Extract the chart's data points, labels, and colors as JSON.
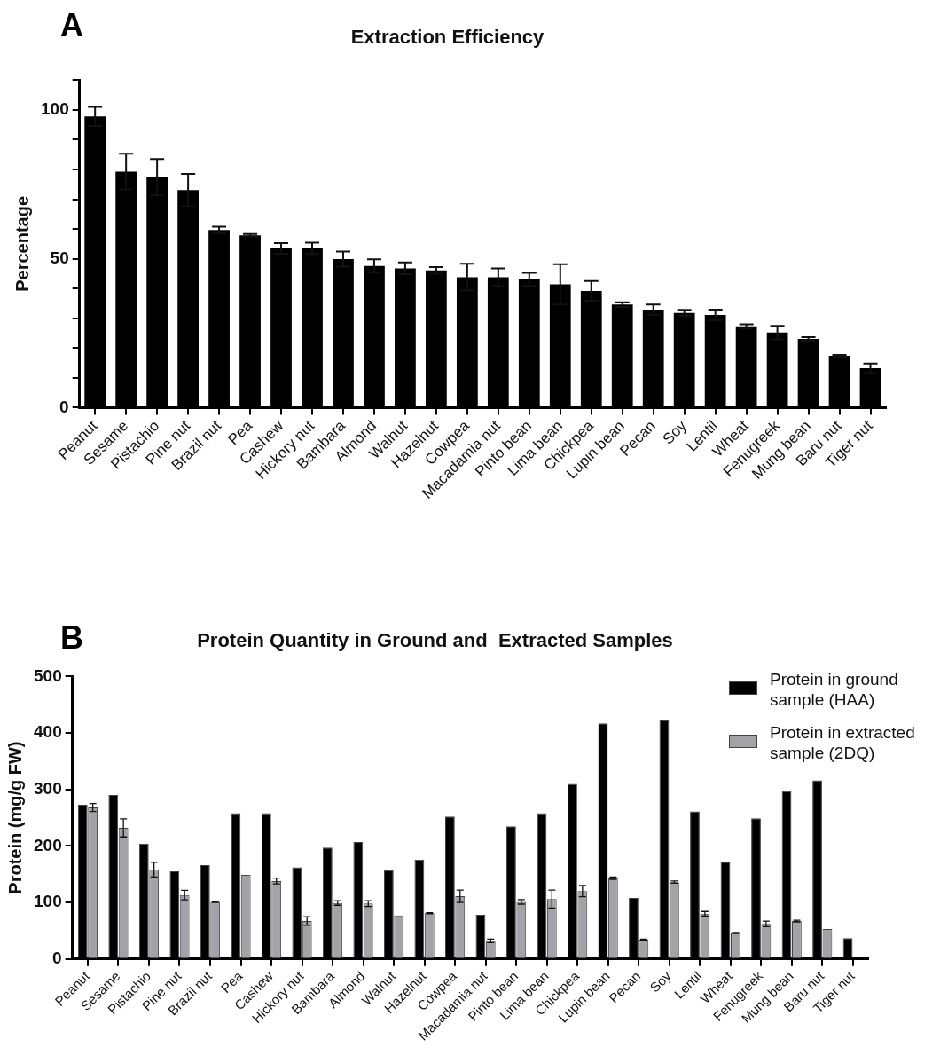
{
  "chart_data": [
    {
      "type": "bar",
      "title": "Extraction Efficiency",
      "ylabel": "Percentage",
      "annotations": [
        "A"
      ],
      "categories": [
        "Peanut",
        "Sesame",
        "Pistachio",
        "Pine nut",
        "Brazil nut",
        "Pea",
        "Cashew",
        "Hickory nut",
        "Bambara",
        "Almond",
        "Walnut",
        "Hazelnut",
        "Cowpea",
        "Macadamia nut",
        "Pinto bean",
        "Lima bean",
        "Chickpea",
        "Lupin bean",
        "Pecan",
        "Soy",
        "Lentil",
        "Wheat",
        "Fenugreek",
        "Mung bean",
        "Baru nut",
        "Tiger nut"
      ],
      "values": [
        97.8,
        79.3,
        77.4,
        73.1,
        59.7,
        57.9,
        53.5,
        53.5,
        49.9,
        47.6,
        46.8,
        46.1,
        43.8,
        43.8,
        43.1,
        41.4,
        39.2,
        34.6,
        32.9,
        31.8,
        31.1,
        27.3,
        25.2,
        23.1,
        17.4,
        13.2
      ],
      "errors": [
        3.2,
        6,
        6.1,
        5.4,
        1.1,
        0.4,
        1.8,
        1.9,
        2.5,
        2.2,
        2,
        1.1,
        4.5,
        3,
        2.2,
        6.8,
        3.3,
        0.8,
        1.7,
        1,
        1.8,
        0.7,
        2.3,
        0.6,
        0.3,
        1.6
      ],
      "color": "#000000",
      "ylim": [
        0,
        110
      ],
      "yticks": [
        0,
        {
          "value": 10,
          "label": null
        },
        {
          "value": 20,
          "label": null
        },
        {
          "value": 30,
          "label": null
        },
        {
          "value": 40,
          "label": null
        },
        50,
        {
          "value": 60,
          "label": null
        },
        {
          "value": 70,
          "label": null
        },
        {
          "value": 80,
          "label": null
        },
        {
          "value": 90,
          "label": null
        },
        100,
        {
          "value": 110,
          "label": null
        }
      ]
    },
    {
      "type": "bar",
      "title": "Protein Quantity in Ground and  Extracted Samples",
      "ylabel": "Protein (mg/g FW)",
      "annotations": [
        "B"
      ],
      "legend": "top right",
      "categories": [
        "Peanut",
        "Sesame",
        "Pistachio",
        "Pine nut",
        "Brazil nut",
        "Pea",
        "Cashew",
        "Hickory nut",
        "Bambara",
        "Almond",
        "Walnut",
        "Hazelnut",
        "Cowpea",
        "Macadamia nut",
        "Pinto bean",
        "Lima bean",
        "Chickpea",
        "Lupin bean",
        "Pecan",
        "Soy",
        "Lentil",
        "Wheat",
        "Fenugreek",
        "Mung bean",
        "Baru nut",
        "Tiger nut"
      ],
      "series": [
        {
          "name": "Protein in ground sample  (HAA)",
          "color": "#000000",
          "values": [
            273,
            290,
            204,
            155,
            166,
            258,
            258,
            162,
            197,
            207,
            157,
            176,
            252,
            78,
            235,
            258,
            310,
            417,
            108,
            422,
            261,
            172,
            249,
            297,
            316,
            37
          ]
        },
        {
          "name": "Protein in extracted sample (2DQ)",
          "color": "#a3a3a7",
          "values": [
            268,
            232,
            158,
            113,
            101,
            149,
            138,
            67,
            99,
            98,
            77,
            81,
            111,
            32,
            101,
            106,
            120,
            143,
            34,
            136,
            80,
            46,
            62,
            67,
            53,
            null
          ],
          "errors": [
            7,
            16,
            13,
            8.5,
            1,
            null,
            5,
            7.6,
            4,
            5,
            null,
            1,
            11,
            3,
            4,
            16,
            10,
            2,
            1,
            2,
            4,
            1,
            5,
            1.5,
            null,
            null
          ]
        }
      ],
      "ylim": [
        0,
        500
      ],
      "yticks": [
        0,
        100,
        200,
        300,
        400,
        500
      ]
    }
  ]
}
